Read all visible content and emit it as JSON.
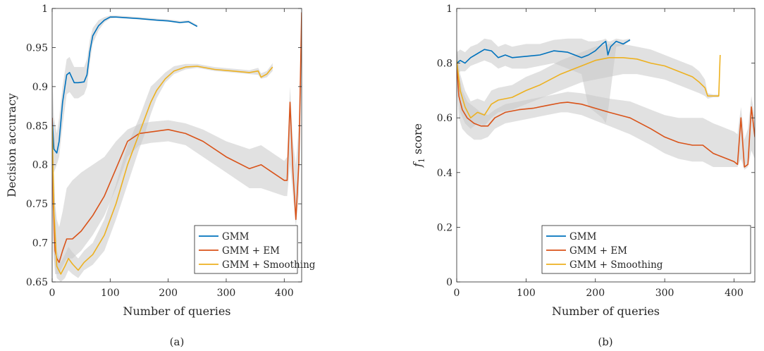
{
  "colors": {
    "GMM": "#0072BD",
    "GMM + EM": "#D95319",
    "GMM + Smoothing": "#EDB120",
    "band": "#c8c8c8"
  },
  "chart_data": [
    {
      "type": "line",
      "caption": "(a)",
      "xlabel": "Number of queries",
      "ylabel": "Decision accuracy",
      "xlim": [
        0,
        430
      ],
      "ylim": [
        0.65,
        1.0
      ],
      "xticks": [
        0,
        100,
        200,
        300,
        400
      ],
      "yticks": [
        0.65,
        0.7,
        0.75,
        0.8,
        0.85,
        0.9,
        0.95,
        1.0
      ],
      "ytick_labels": [
        "0.65",
        "0.7",
        "0.75",
        "0.8",
        "0.85",
        "0.9",
        "0.95",
        "1"
      ],
      "grid": false,
      "legend_position": "bottom-right",
      "series": [
        {
          "name": "GMM",
          "x": [
            0,
            3,
            8,
            12,
            18,
            25,
            30,
            38,
            45,
            55,
            60,
            65,
            70,
            80,
            90,
            100,
            110,
            130,
            150,
            180,
            200,
            220,
            235,
            240,
            245,
            250
          ],
          "y": [
            0.86,
            0.82,
            0.815,
            0.83,
            0.88,
            0.915,
            0.918,
            0.905,
            0.905,
            0.906,
            0.915,
            0.945,
            0.965,
            0.978,
            0.985,
            0.989,
            0.989,
            0.988,
            0.987,
            0.985,
            0.984,
            0.982,
            0.983,
            0.981,
            0.979,
            0.977
          ],
          "band_lo": [
            0.8,
            0.79,
            0.8,
            0.81,
            0.85,
            0.89,
            0.893,
            0.885,
            0.885,
            0.89,
            0.9,
            0.93,
            0.955,
            0.972,
            0.982,
            0.987,
            0.988,
            0.987,
            0.986,
            0.984,
            0.983,
            0.981,
            0.982,
            0.98,
            0.978,
            0.976
          ],
          "band_hi": [
            0.92,
            0.86,
            0.84,
            0.86,
            0.9,
            0.935,
            0.938,
            0.925,
            0.925,
            0.925,
            0.935,
            0.96,
            0.975,
            0.985,
            0.989,
            0.991,
            0.991,
            0.99,
            0.989,
            0.987,
            0.986,
            0.984,
            0.985,
            0.983,
            0.981,
            0.979
          ]
        },
        {
          "name": "GMM + EM",
          "x": [
            0,
            2,
            5,
            8,
            12,
            18,
            25,
            35,
            50,
            70,
            90,
            110,
            130,
            150,
            170,
            200,
            230,
            260,
            300,
            340,
            360,
            380,
            400,
            405,
            410,
            415,
            420,
            425,
            430
          ],
          "y": [
            0.86,
            0.75,
            0.69,
            0.68,
            0.675,
            0.69,
            0.705,
            0.705,
            0.715,
            0.735,
            0.76,
            0.795,
            0.83,
            0.84,
            0.842,
            0.845,
            0.84,
            0.83,
            0.81,
            0.795,
            0.8,
            0.79,
            0.78,
            0.78,
            0.88,
            0.79,
            0.73,
            0.8,
            0.995
          ],
          "band_lo": [
            0.8,
            0.69,
            0.66,
            0.66,
            0.66,
            0.67,
            0.68,
            0.68,
            0.69,
            0.71,
            0.735,
            0.77,
            0.81,
            0.825,
            0.828,
            0.83,
            0.825,
            0.81,
            0.79,
            0.77,
            0.77,
            0.765,
            0.76,
            0.76,
            0.8,
            0.76,
            0.72,
            0.76,
            0.92
          ],
          "band_hi": [
            0.9,
            0.81,
            0.75,
            0.73,
            0.72,
            0.74,
            0.77,
            0.78,
            0.79,
            0.8,
            0.81,
            0.83,
            0.845,
            0.852,
            0.855,
            0.857,
            0.853,
            0.845,
            0.83,
            0.82,
            0.825,
            0.815,
            0.805,
            0.81,
            0.9,
            0.83,
            0.8,
            0.85,
            1.0
          ]
        },
        {
          "name": "GMM + Smoothing",
          "x": [
            0,
            3,
            8,
            15,
            22,
            28,
            35,
            45,
            55,
            70,
            90,
            110,
            130,
            150,
            160,
            170,
            180,
            195,
            210,
            230,
            250,
            280,
            310,
            340,
            355,
            360,
            370,
            380
          ],
          "y": [
            0.85,
            0.74,
            0.67,
            0.66,
            0.67,
            0.68,
            0.673,
            0.665,
            0.675,
            0.685,
            0.71,
            0.75,
            0.8,
            0.84,
            0.86,
            0.88,
            0.895,
            0.91,
            0.92,
            0.925,
            0.926,
            0.922,
            0.92,
            0.918,
            0.92,
            0.912,
            0.916,
            0.925
          ],
          "band_lo": [
            0.78,
            0.68,
            0.655,
            0.65,
            0.655,
            0.665,
            0.66,
            0.655,
            0.665,
            0.672,
            0.69,
            0.73,
            0.775,
            0.82,
            0.84,
            0.865,
            0.885,
            0.905,
            0.916,
            0.922,
            0.924,
            0.92,
            0.918,
            0.916,
            0.915,
            0.91,
            0.912,
            0.92
          ],
          "band_hi": [
            0.9,
            0.79,
            0.69,
            0.675,
            0.685,
            0.695,
            0.688,
            0.68,
            0.69,
            0.7,
            0.73,
            0.775,
            0.825,
            0.86,
            0.88,
            0.9,
            0.907,
            0.918,
            0.926,
            0.929,
            0.929,
            0.925,
            0.923,
            0.921,
            0.924,
            0.917,
            0.92,
            0.93
          ]
        }
      ]
    },
    {
      "type": "line",
      "caption": "(b)",
      "xlabel": "Number of queries",
      "ylabel": "f1 score",
      "ylabel_main": "f",
      "ylabel_sub": "1",
      "ylabel_rest": " score",
      "xlim": [
        0,
        430
      ],
      "ylim": [
        0,
        1
      ],
      "xticks": [
        0,
        100,
        200,
        300,
        400
      ],
      "yticks": [
        0,
        0.2,
        0.4,
        0.6,
        0.8,
        1
      ],
      "ytick_labels": [
        "0",
        "0.2",
        "0.4",
        "0.6",
        "0.8",
        "1"
      ],
      "grid": false,
      "legend_position": "bottom-right",
      "series": [
        {
          "name": "GMM",
          "x": [
            0,
            5,
            12,
            20,
            30,
            40,
            50,
            60,
            70,
            80,
            100,
            120,
            140,
            160,
            180,
            190,
            200,
            210,
            215,
            218,
            222,
            230,
            240,
            250
          ],
          "y": [
            0.8,
            0.81,
            0.8,
            0.82,
            0.835,
            0.85,
            0.845,
            0.82,
            0.83,
            0.82,
            0.825,
            0.83,
            0.845,
            0.84,
            0.82,
            0.83,
            0.845,
            0.87,
            0.88,
            0.83,
            0.86,
            0.88,
            0.87,
            0.885
          ],
          "band_lo": [
            0.76,
            0.77,
            0.77,
            0.79,
            0.8,
            0.81,
            0.8,
            0.78,
            0.79,
            0.78,
            0.78,
            0.79,
            0.8,
            0.78,
            0.76,
            0.64,
            0.62,
            0.6,
            0.58,
            0.62,
            0.7,
            0.86,
            0.865,
            0.88
          ],
          "band_hi": [
            0.84,
            0.85,
            0.84,
            0.86,
            0.87,
            0.89,
            0.885,
            0.86,
            0.87,
            0.86,
            0.87,
            0.87,
            0.885,
            0.89,
            0.89,
            0.88,
            0.88,
            0.885,
            0.89,
            0.88,
            0.88,
            0.89,
            0.885,
            0.89
          ]
        },
        {
          "name": "GMM + EM",
          "x": [
            0,
            3,
            8,
            15,
            25,
            35,
            45,
            55,
            70,
            90,
            110,
            130,
            150,
            160,
            180,
            200,
            220,
            250,
            280,
            300,
            320,
            340,
            355,
            370,
            380,
            390,
            400,
            405,
            410,
            415,
            420,
            425,
            430
          ],
          "y": [
            0.8,
            0.68,
            0.63,
            0.6,
            0.58,
            0.57,
            0.57,
            0.6,
            0.62,
            0.63,
            0.635,
            0.645,
            0.655,
            0.657,
            0.65,
            0.635,
            0.62,
            0.6,
            0.56,
            0.53,
            0.51,
            0.5,
            0.5,
            0.47,
            0.46,
            0.45,
            0.44,
            0.43,
            0.6,
            0.42,
            0.43,
            0.64,
            0.53
          ],
          "band_lo": [
            0.7,
            0.6,
            0.56,
            0.54,
            0.52,
            0.52,
            0.53,
            0.56,
            0.58,
            0.59,
            0.6,
            0.61,
            0.62,
            0.62,
            0.61,
            0.59,
            0.57,
            0.54,
            0.5,
            0.47,
            0.45,
            0.44,
            0.44,
            0.42,
            0.42,
            0.42,
            0.42,
            0.42,
            0.45,
            0.41,
            0.42,
            0.48,
            0.45
          ],
          "band_hi": [
            0.86,
            0.76,
            0.7,
            0.66,
            0.64,
            0.62,
            0.61,
            0.63,
            0.65,
            0.66,
            0.67,
            0.68,
            0.69,
            0.695,
            0.69,
            0.68,
            0.67,
            0.66,
            0.63,
            0.61,
            0.6,
            0.6,
            0.6,
            0.58,
            0.57,
            0.56,
            0.55,
            0.54,
            0.64,
            0.52,
            0.56,
            0.68,
            0.6
          ]
        },
        {
          "name": "GMM + Smoothing",
          "x": [
            0,
            5,
            12,
            20,
            30,
            40,
            50,
            60,
            80,
            100,
            120,
            150,
            180,
            200,
            220,
            240,
            260,
            280,
            300,
            320,
            340,
            350,
            358,
            362,
            370,
            378,
            380
          ],
          "y": [
            0.81,
            0.7,
            0.64,
            0.6,
            0.62,
            0.61,
            0.65,
            0.665,
            0.675,
            0.7,
            0.72,
            0.76,
            0.79,
            0.81,
            0.82,
            0.82,
            0.815,
            0.8,
            0.79,
            0.77,
            0.75,
            0.73,
            0.71,
            0.68,
            0.68,
            0.68,
            0.83
          ],
          "band_lo": [
            0.74,
            0.62,
            0.58,
            0.56,
            0.58,
            0.57,
            0.6,
            0.62,
            0.63,
            0.65,
            0.67,
            0.7,
            0.73,
            0.74,
            0.75,
            0.76,
            0.76,
            0.75,
            0.74,
            0.72,
            0.7,
            0.69,
            0.68,
            0.67,
            0.675,
            0.675,
            0.8
          ],
          "band_hi": [
            0.86,
            0.76,
            0.7,
            0.66,
            0.67,
            0.66,
            0.7,
            0.71,
            0.72,
            0.75,
            0.77,
            0.81,
            0.84,
            0.86,
            0.87,
            0.87,
            0.86,
            0.85,
            0.83,
            0.81,
            0.79,
            0.77,
            0.74,
            0.69,
            0.685,
            0.685,
            0.84
          ]
        }
      ]
    }
  ]
}
